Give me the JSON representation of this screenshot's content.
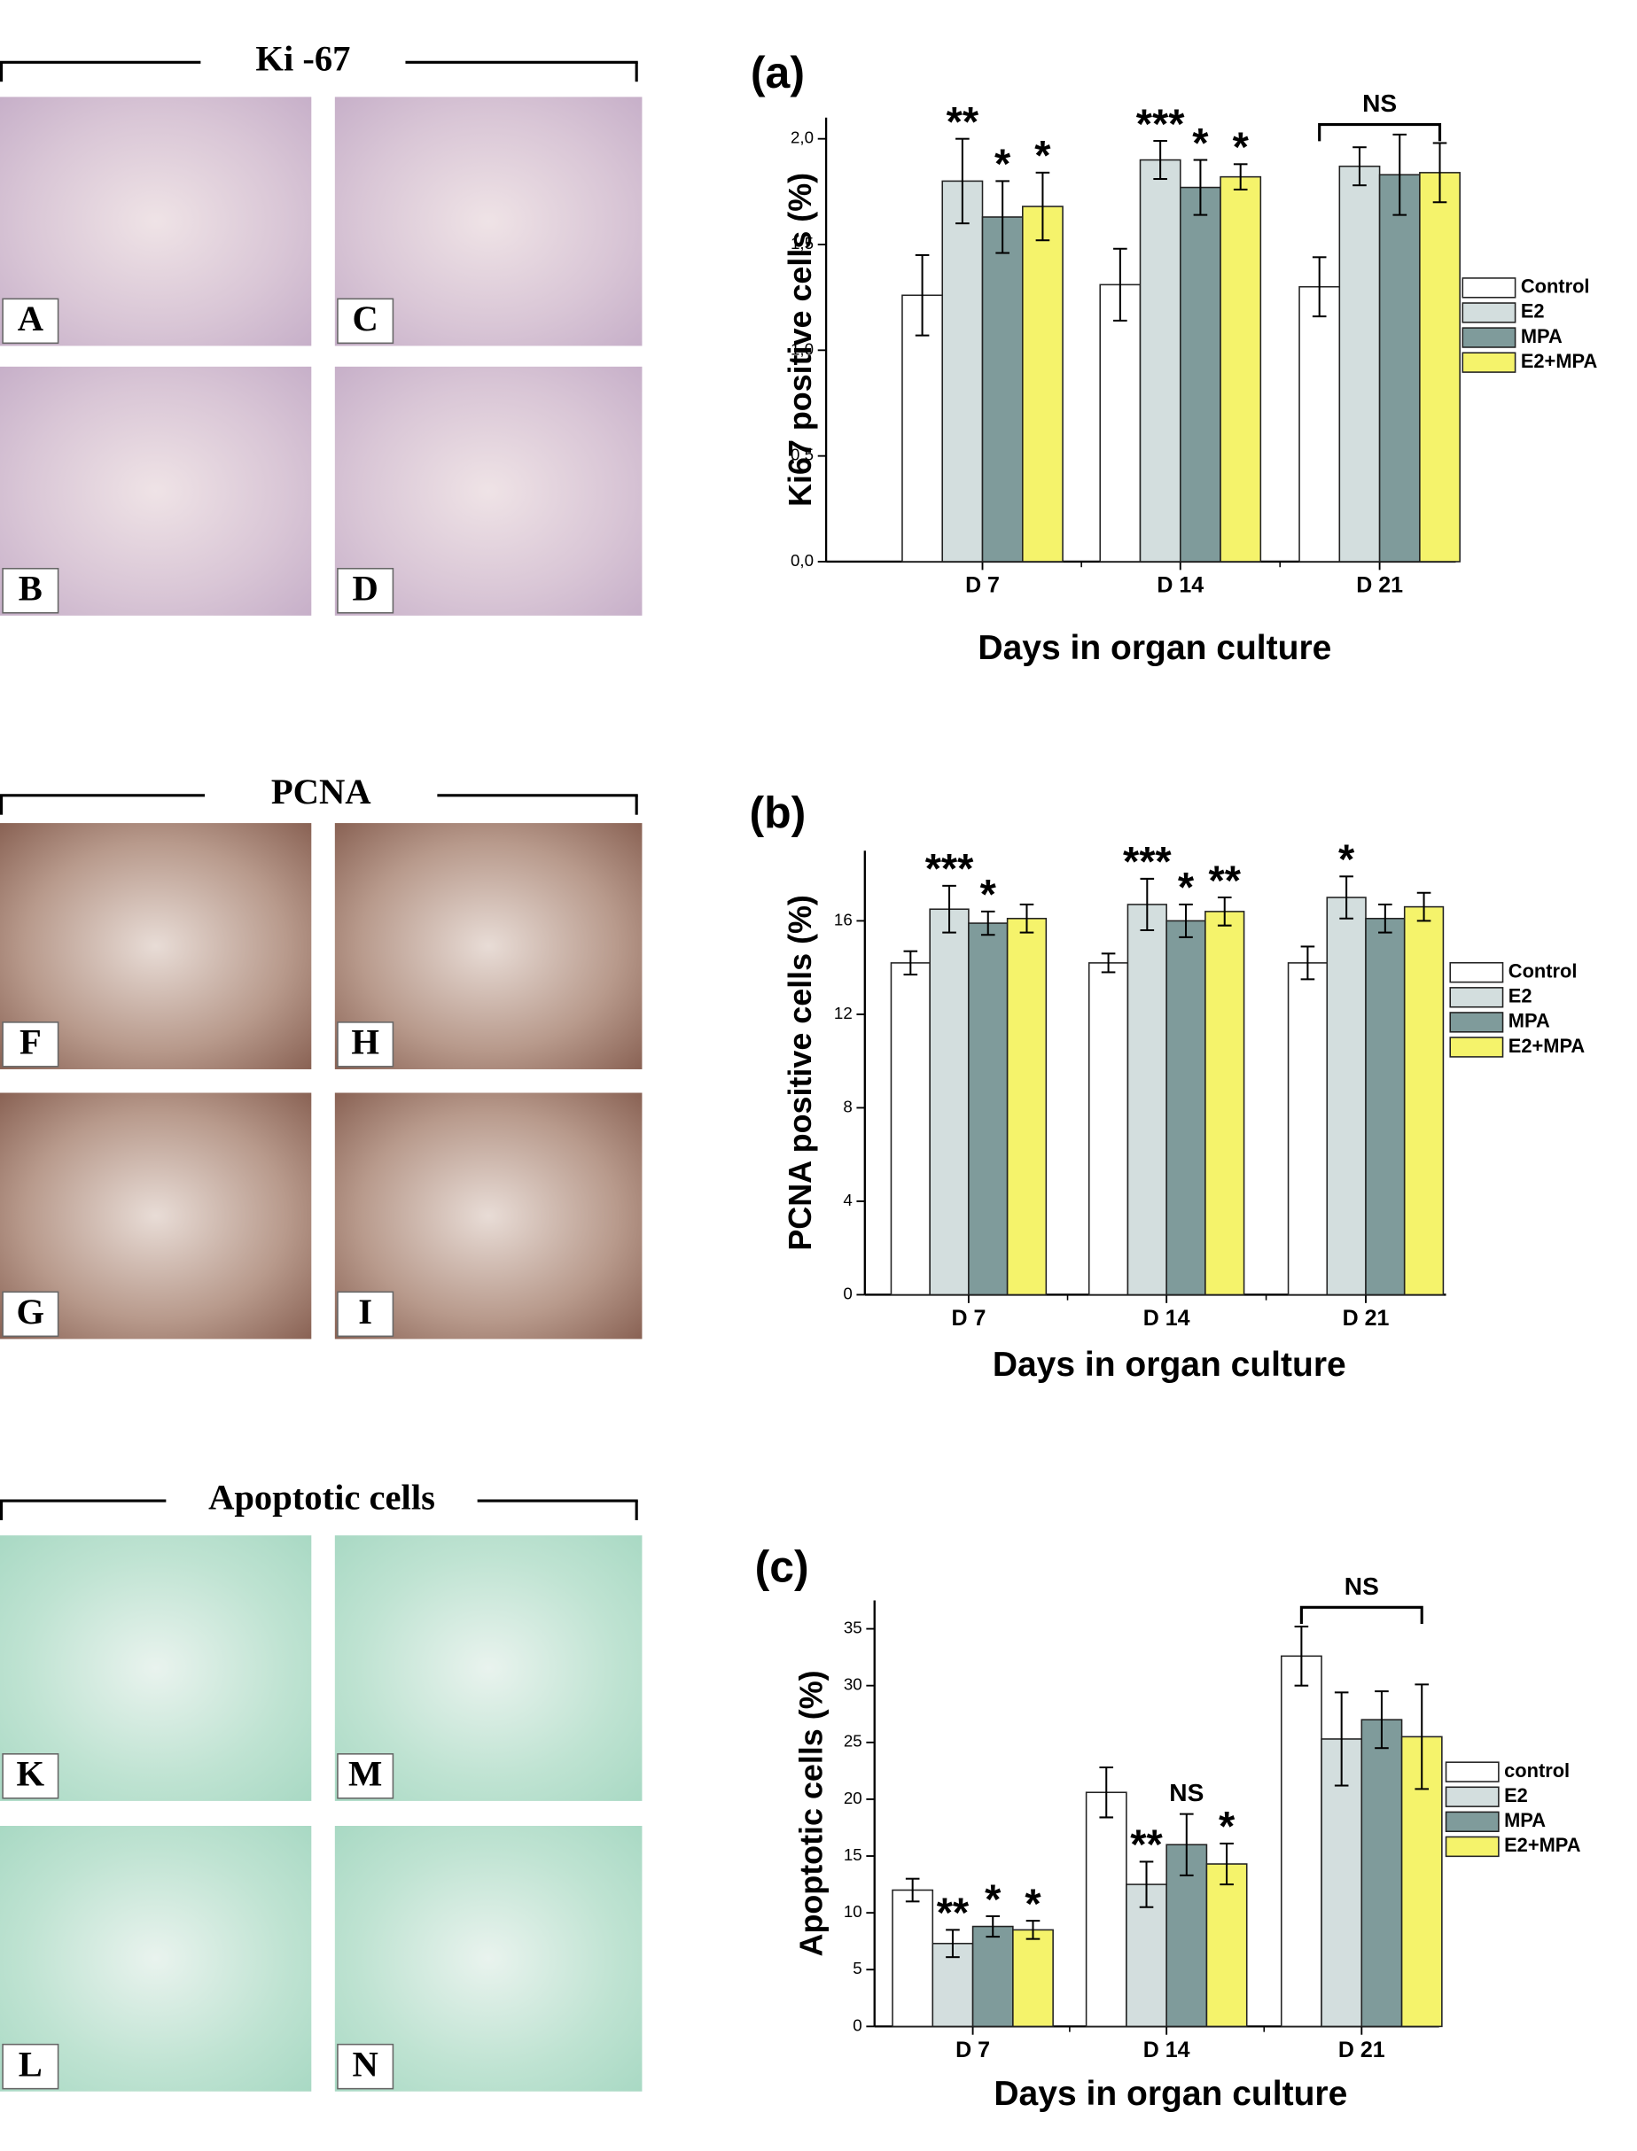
{
  "micrographs": [
    {
      "title": "Ki -67",
      "panels": [
        "A",
        "C",
        "B",
        "D"
      ]
    },
    {
      "title": "PCNA",
      "panels": [
        "F",
        "H",
        "G",
        "I"
      ]
    },
    {
      "title": "Apoptotic cells",
      "panels": [
        "K",
        "M",
        "L",
        "N"
      ]
    }
  ],
  "chart_data": [
    {
      "type": "bar",
      "panel_label": "(a)",
      "y_label": "Ki67 positive cells (%)",
      "x_label": "Days in organ culture",
      "categories": [
        "D 7",
        "D 14",
        "D 21"
      ],
      "ylim": [
        0,
        2.1
      ],
      "yticks": [
        {
          "value": 0,
          "label": "0,0"
        },
        {
          "value": 0.5,
          "label": "0,5"
        },
        {
          "value": 1,
          "label": "1,0"
        },
        {
          "value": 1.5,
          "label": "1,5"
        },
        {
          "value": 2,
          "label": "2,0"
        }
      ],
      "legend": "right",
      "series": [
        {
          "name": "Control",
          "color": "#ffffff",
          "values": [
            1.26,
            1.31,
            1.3
          ],
          "errors": [
            0.19,
            0.17,
            0.14
          ],
          "significance": [
            null,
            null,
            null
          ]
        },
        {
          "name": "E2",
          "color": "#d3dede",
          "values": [
            1.8,
            1.9,
            1.87
          ],
          "errors": [
            0.2,
            0.09,
            0.09
          ],
          "significance": [
            "**",
            "***",
            null
          ]
        },
        {
          "name": "MPA",
          "color": "#7f9b9b",
          "values": [
            1.63,
            1.77,
            1.83
          ],
          "errors": [
            0.17,
            0.13,
            0.19
          ],
          "significance": [
            "*",
            "*",
            null
          ]
        },
        {
          "name": "E2+MPA",
          "color": "#f5f36b",
          "values": [
            1.68,
            1.82,
            1.84
          ],
          "errors": [
            0.16,
            0.06,
            0.14
          ],
          "significance": [
            "*",
            "*",
            null
          ]
        }
      ],
      "brackets": [
        {
          "label": "NS",
          "category": "D 21"
        }
      ]
    },
    {
      "type": "bar",
      "panel_label": "(b)",
      "y_label": "PCNA positive cells (%)",
      "x_label": "Days in organ culture",
      "categories": [
        "D 7",
        "D 14",
        "D 21"
      ],
      "ylim": [
        0,
        19
      ],
      "yticks": [
        0,
        4,
        8,
        12,
        16
      ],
      "legend": "right",
      "series": [
        {
          "name": "Control",
          "color": "#ffffff",
          "values": [
            14.2,
            14.2,
            14.2
          ],
          "errors": [
            0.5,
            0.4,
            0.7
          ],
          "significance": [
            null,
            null,
            null
          ]
        },
        {
          "name": "E2",
          "color": "#d3dede",
          "values": [
            16.5,
            16.7,
            17.0
          ],
          "errors": [
            1.0,
            1.1,
            0.9
          ],
          "significance": [
            "***",
            "***",
            "*"
          ]
        },
        {
          "name": "MPA",
          "color": "#7f9b9b",
          "values": [
            15.9,
            16.0,
            16.1
          ],
          "errors": [
            0.5,
            0.7,
            0.6
          ],
          "significance": [
            "*",
            "*",
            null
          ]
        },
        {
          "name": "E2+MPA",
          "color": "#f5f36b",
          "values": [
            16.1,
            16.4,
            16.6
          ],
          "errors": [
            0.6,
            0.6,
            0.6
          ],
          "significance": [
            null,
            "**",
            null
          ]
        }
      ],
      "brackets": []
    },
    {
      "type": "bar",
      "panel_label": "(c)",
      "y_label": "Apoptotic cells (%)",
      "x_label": "Days in organ culture",
      "categories": [
        "D 7",
        "D 14",
        "D 21"
      ],
      "ylim": [
        0,
        37.5
      ],
      "yticks": [
        0,
        5,
        10,
        15,
        20,
        25,
        30,
        35
      ],
      "legend": "right",
      "series": [
        {
          "name": "control",
          "color": "#ffffff",
          "values": [
            12.0,
            20.6,
            32.6
          ],
          "errors": [
            1.0,
            2.2,
            2.6
          ],
          "significance": [
            null,
            null,
            null
          ]
        },
        {
          "name": "E2",
          "color": "#d3dede",
          "values": [
            7.3,
            12.5,
            25.3
          ],
          "errors": [
            1.2,
            2.0,
            4.1
          ],
          "significance": [
            "**",
            "**",
            null
          ]
        },
        {
          "name": "MPA",
          "color": "#7f9b9b",
          "values": [
            8.8,
            16.0,
            27.0
          ],
          "errors": [
            0.9,
            2.7,
            2.5
          ],
          "significance": [
            "*",
            "NS",
            null
          ]
        },
        {
          "name": "E2+MPA",
          "color": "#f5f36b",
          "values": [
            8.5,
            14.3,
            25.5
          ],
          "errors": [
            0.8,
            1.8,
            4.6
          ],
          "significance": [
            "*",
            "*",
            null
          ]
        }
      ],
      "brackets": [
        {
          "label": "NS",
          "category": "D 21"
        }
      ]
    }
  ]
}
